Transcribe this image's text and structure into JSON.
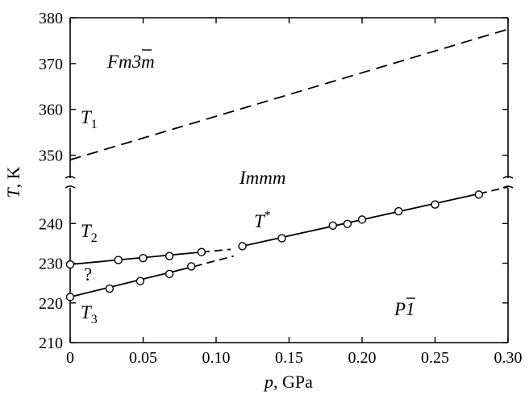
{
  "chart_data": {
    "type": "line",
    "xlabel_var": "p",
    "xlabel_unit": ", GPa",
    "ylabel_var": "T",
    "ylabel_unit": ", K",
    "xlim": [
      0,
      0.3
    ],
    "x_ticks": [
      "0",
      "0.05",
      "0.10",
      "0.15",
      "0.20",
      "0.25",
      "0.30"
    ],
    "x_tick_values": [
      0,
      0.05,
      0.1,
      0.15,
      0.2,
      0.25,
      0.3
    ],
    "y_break": true,
    "y_upper_range": [
      345,
      380
    ],
    "y_lower_range": [
      210,
      249
    ],
    "y_ticks": [
      "210",
      "220",
      "230",
      "240",
      "350",
      "360",
      "370",
      "380"
    ],
    "y_tick_values": [
      210,
      220,
      230,
      240,
      350,
      360,
      370,
      380
    ],
    "series": [
      {
        "key": "T1",
        "style": "dashed",
        "segment": "upper",
        "line": [
          [
            0,
            349
          ],
          [
            0.3,
            377.5
          ]
        ],
        "points": []
      },
      {
        "key": "T2",
        "style": "solid-then-dashed",
        "segment": "lower",
        "line": [
          [
            0,
            229.7
          ],
          [
            0.09,
            232.8
          ]
        ],
        "dashed": [
          [
            0.09,
            232.8
          ],
          [
            0.11,
            233.5
          ]
        ],
        "points": [
          [
            0,
            229.7
          ],
          [
            0.033,
            230.8
          ],
          [
            0.05,
            231.3
          ],
          [
            0.068,
            231.8
          ],
          [
            0.09,
            232.8
          ]
        ]
      },
      {
        "key": "T3",
        "style": "solid-then-dashed",
        "segment": "lower",
        "line": [
          [
            0,
            221.5
          ],
          [
            0.085,
            229.2
          ]
        ],
        "dashed": [
          [
            0.085,
            229.2
          ],
          [
            0.112,
            231.8
          ]
        ],
        "points": [
          [
            0,
            221.5
          ],
          [
            0.027,
            223.6
          ],
          [
            0.048,
            225.5
          ],
          [
            0.068,
            227.3
          ],
          [
            0.083,
            229.2
          ]
        ]
      },
      {
        "key": "Tstar",
        "style": "solid-then-dashed",
        "segment": "lower",
        "line": [
          [
            0.118,
            234.3
          ],
          [
            0.28,
            247.5
          ]
        ],
        "dashed": [
          [
            0.28,
            247.5
          ],
          [
            0.3,
            249.2
          ]
        ],
        "points": [
          [
            0.118,
            234.3
          ],
          [
            0.145,
            236.3
          ],
          [
            0.18,
            239.5
          ],
          [
            0.19,
            239.9
          ],
          [
            0.2,
            241.0
          ],
          [
            0.225,
            243.1
          ],
          [
            0.25,
            244.8
          ],
          [
            0.28,
            247.3
          ]
        ]
      }
    ],
    "annotations": {
      "fm3m": "Fm3m",
      "immm": "Immm",
      "p1": "P1",
      "t1_main": "T",
      "t1_sub": "1",
      "t2_main": "T",
      "t2_sub": "2",
      "t3_main": "T",
      "t3_sub": "3",
      "tstar_main": "T",
      "tstar_sup": "*",
      "question": "?"
    },
    "grid": false,
    "line_color": "#000000"
  }
}
